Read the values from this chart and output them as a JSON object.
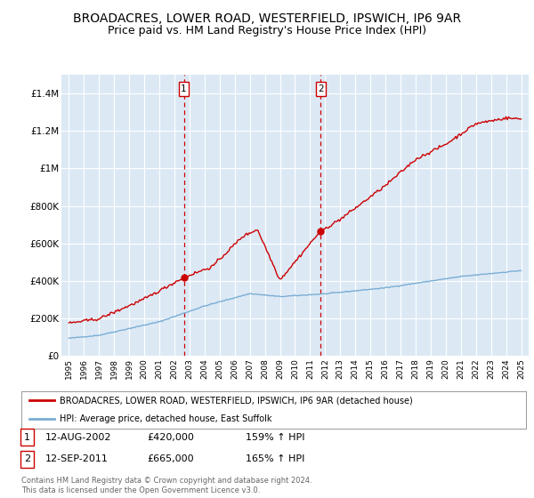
{
  "title": "BROADACRES, LOWER ROAD, WESTERFIELD, IPSWICH, IP6 9AR",
  "subtitle": "Price paid vs. HM Land Registry's House Price Index (HPI)",
  "title_fontsize": 10,
  "subtitle_fontsize": 9,
  "background_color": "#ffffff",
  "plot_bg_color": "#dce9f5",
  "grid_color": "#ffffff",
  "red_line_color": "#cc0000",
  "blue_line_color": "#7aadd4",
  "marker_color": "#cc0000",
  "dashed_color": "#cc0000",
  "legend_label_red": "BROADACRES, LOWER ROAD, WESTERFIELD, IPSWICH, IP6 9AR (detached house)",
  "legend_label_blue": "HPI: Average price, detached house, East Suffolk",
  "footnote": "Contains HM Land Registry data © Crown copyright and database right 2024.\nThis data is licensed under the Open Government Licence v3.0.",
  "sale1_date": "12-AUG-2002",
  "sale1_price": "£420,000",
  "sale1_hpi": "159% ↑ HPI",
  "sale1_x": 2002.62,
  "sale1_y": 420000,
  "sale2_date": "12-SEP-2011",
  "sale2_price": "£665,000",
  "sale2_hpi": "165% ↑ HPI",
  "sale2_x": 2011.71,
  "sale2_y": 665000,
  "ylim": [
    0,
    1500000
  ],
  "xlim": [
    1994.5,
    2025.5
  ],
  "yticks": [
    0,
    200000,
    400000,
    600000,
    800000,
    1000000,
    1200000,
    1400000
  ],
  "ytick_labels": [
    "£0",
    "£200K",
    "£400K",
    "£600K",
    "£800K",
    "£1M",
    "£1.2M",
    "£1.4M"
  ]
}
